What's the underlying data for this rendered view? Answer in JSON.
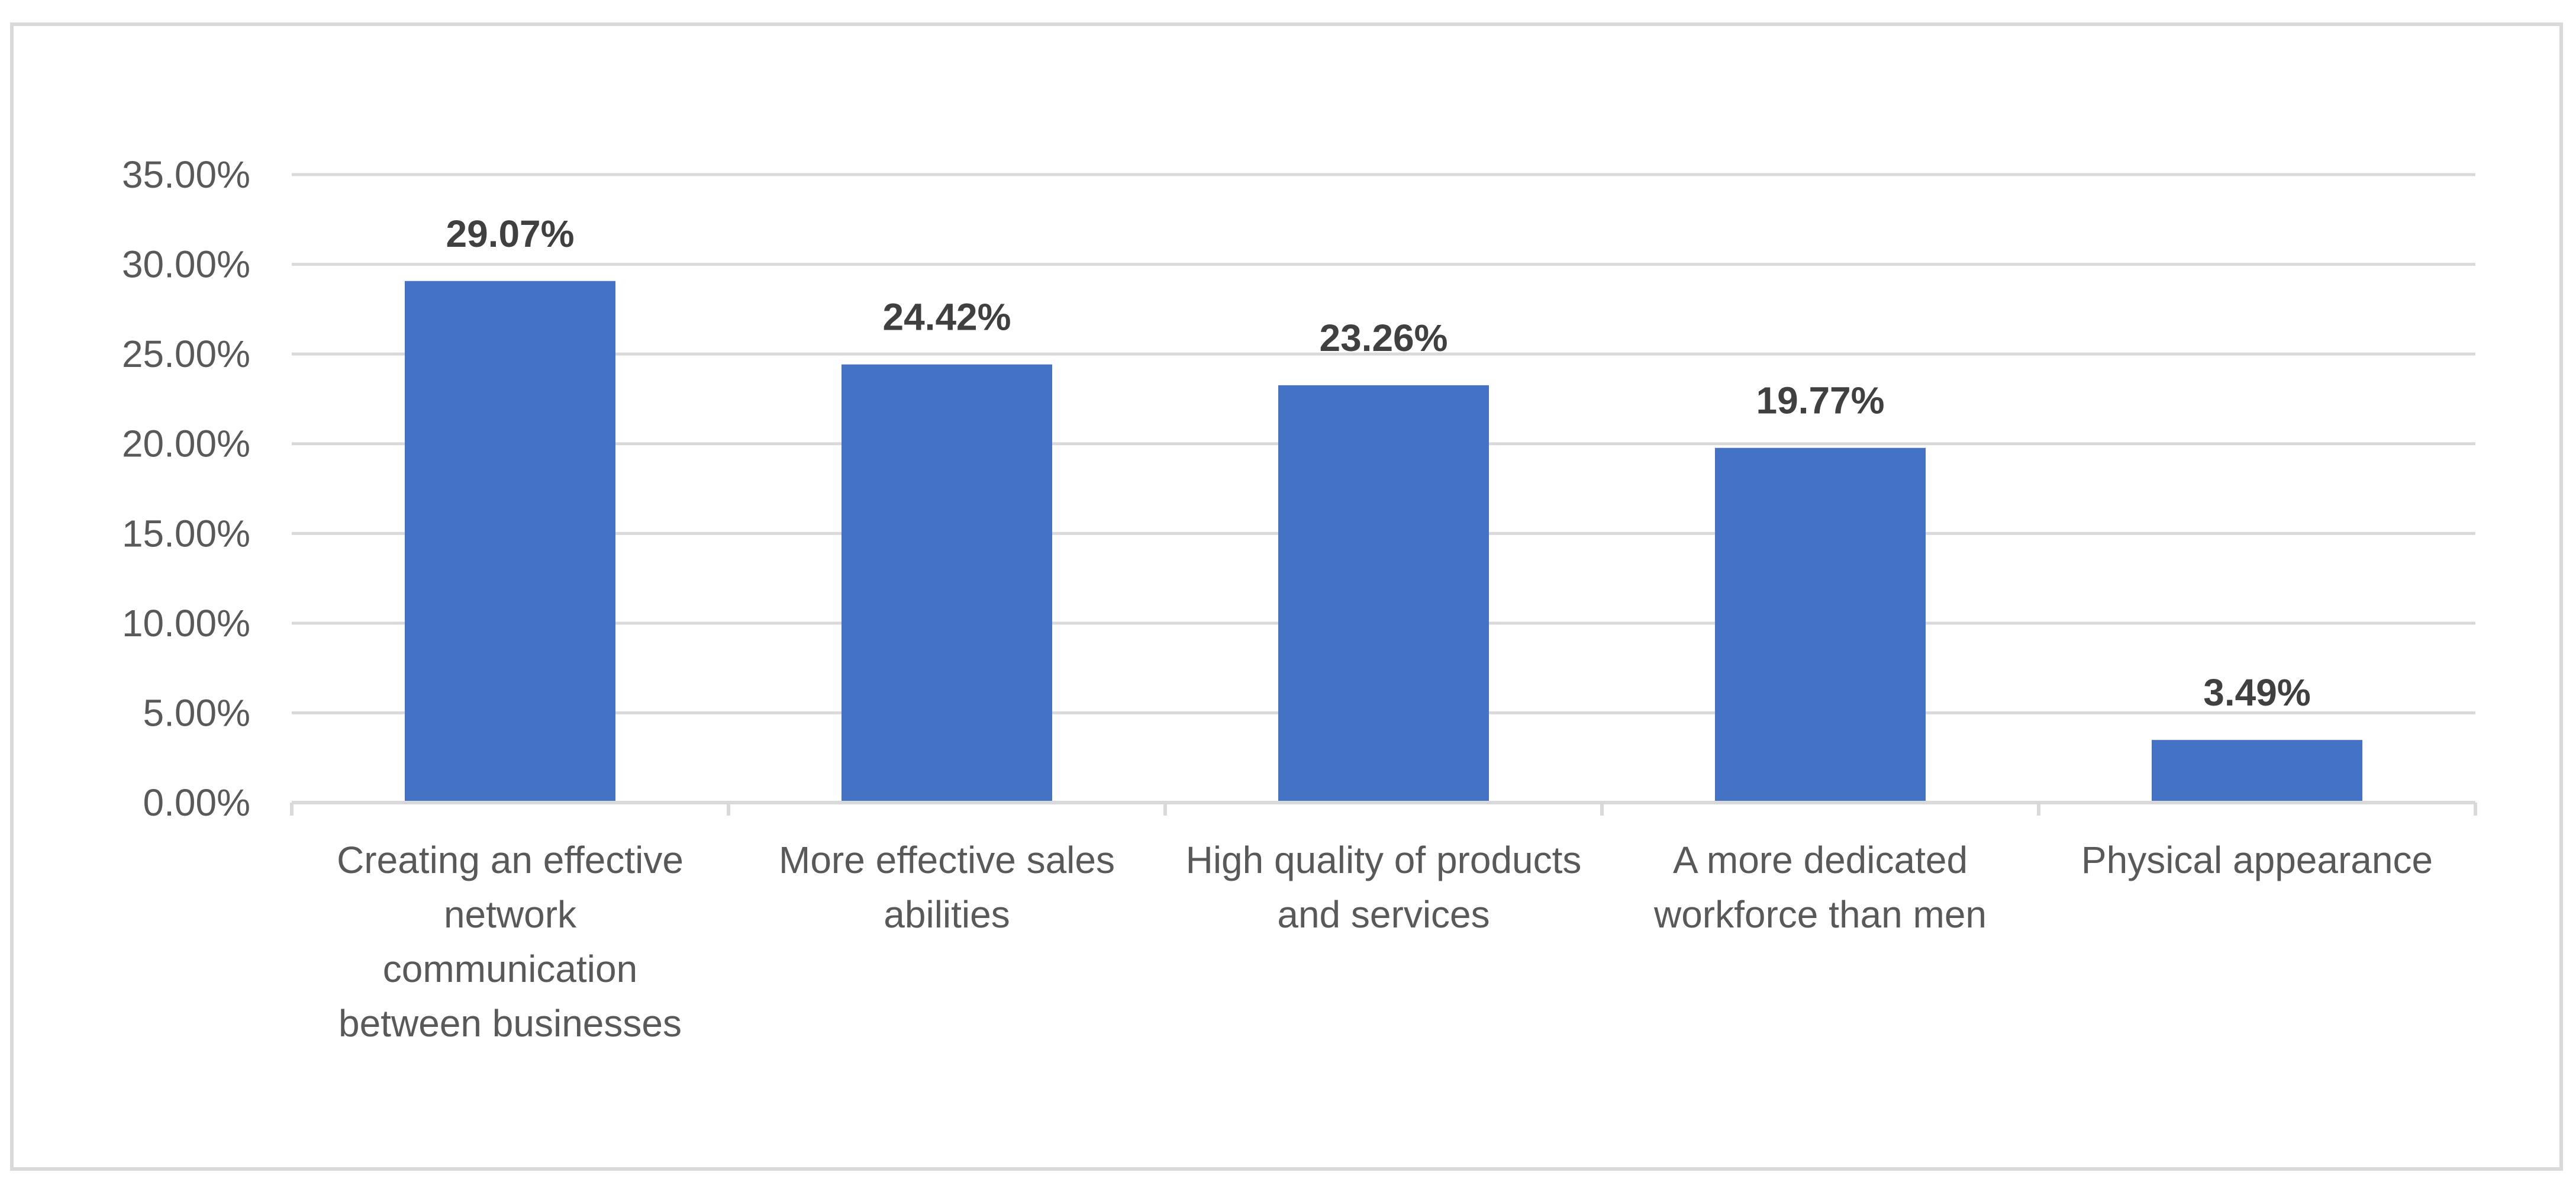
{
  "chart_data": {
    "type": "bar",
    "title": "",
    "xlabel": "",
    "ylabel": "",
    "categories": [
      "Creating an effective network communication between businesses",
      "More effective sales abilities",
      "High quality of products and services",
      "A more dedicated workforce than men",
      "Physical appearance"
    ],
    "category_lines": [
      [
        "Creating an effective",
        "network",
        "communication",
        "between businesses"
      ],
      [
        "More effective sales",
        "abilities"
      ],
      [
        "High quality of products",
        "and services"
      ],
      [
        "A more dedicated",
        "workforce than men"
      ],
      [
        "Physical appearance"
      ]
    ],
    "values": [
      29.07,
      24.42,
      23.26,
      19.77,
      3.49
    ],
    "data_labels": [
      "29.07%",
      "24.42%",
      "23.26%",
      "19.77%",
      "3.49%"
    ],
    "ylim": [
      0,
      35
    ],
    "y_ticks": [
      0,
      5,
      10,
      15,
      20,
      25,
      30,
      35
    ],
    "y_tick_labels": [
      "0.00%",
      "5.00%",
      "10.00%",
      "15.00%",
      "20.00%",
      "25.00%",
      "30.00%",
      "35.00%"
    ],
    "grid": true,
    "legend": "none",
    "colors": {
      "bar": "#4472c4",
      "grid": "#d9d9d9",
      "axis": "#d9d9d9",
      "tick_text": "#595959",
      "label_text": "#404040",
      "frame": "#d9d9d9"
    }
  }
}
